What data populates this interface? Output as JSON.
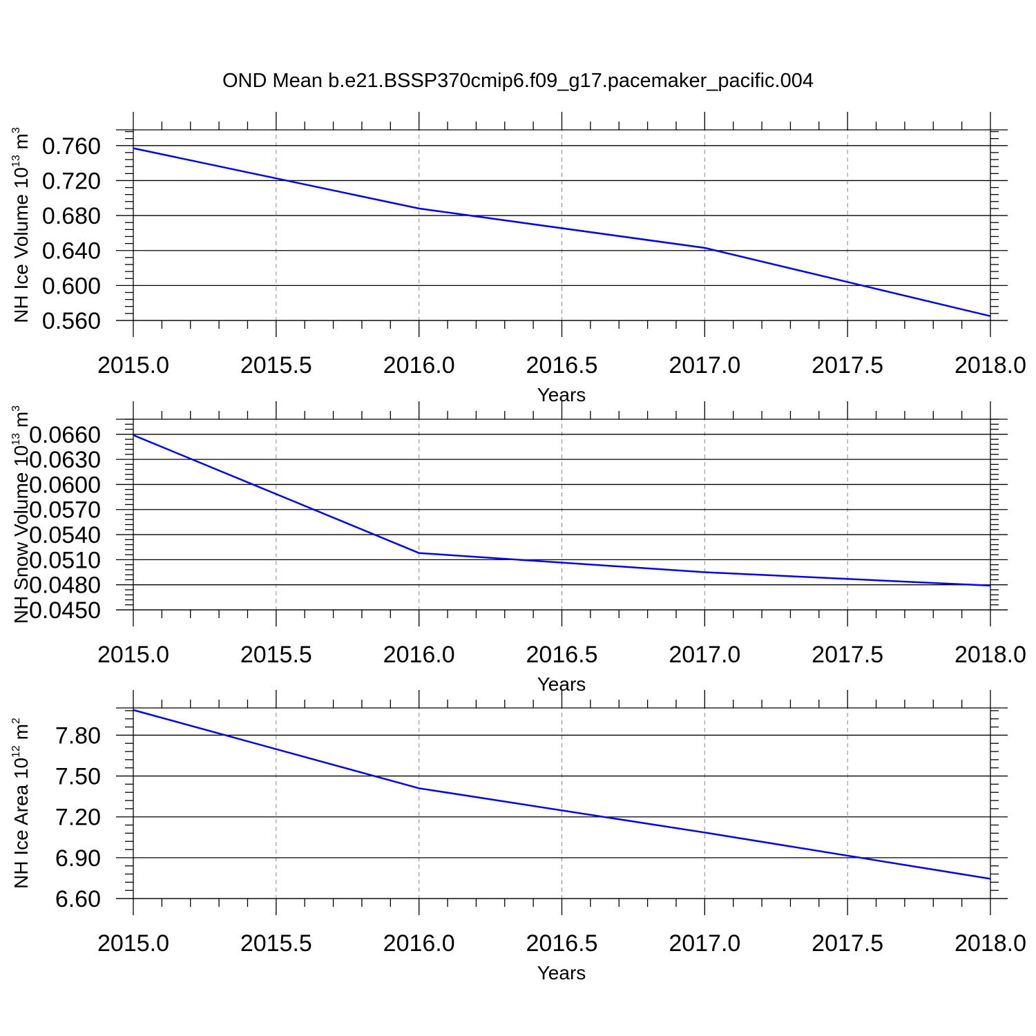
{
  "figure": {
    "title": "OND Mean b.e21.BSSP370cmip6.f09_g17.pacemaker_pacific.004",
    "line_color": "#0000ee",
    "grid_color": "#888888",
    "axis_color": "#000000"
  },
  "chart_data": [
    {
      "type": "line",
      "title": "",
      "xlabel": "Years",
      "ylabel": {
        "base": "NH Ice Volume 10",
        "sup": "13",
        "unit": " m",
        "unit_sup": "3"
      },
      "x": [
        2015,
        2016,
        2017,
        2018
      ],
      "series": [
        {
          "values": [
            0.757,
            0.688,
            0.643,
            0.565
          ]
        }
      ],
      "xlim": [
        2015,
        2018
      ],
      "ylim": [
        0.56,
        0.778
      ],
      "xticks": [
        2015.0,
        2015.5,
        2016.0,
        2016.5,
        2017.0,
        2017.5,
        2018.0
      ],
      "xtick_labels": [
        "2015.0",
        "2015.5",
        "2016.0",
        "2016.5",
        "2017.0",
        "2017.5",
        "2018.0"
      ],
      "yticks": [
        0.56,
        0.6,
        0.64,
        0.68,
        0.72,
        0.76
      ],
      "ytick_labels": [
        "0.560",
        "0.600",
        "0.640",
        "0.680",
        "0.720",
        "0.760"
      ],
      "grid": "vertical dashed at major x ticks"
    },
    {
      "type": "line",
      "title": "",
      "xlabel": "Years",
      "ylabel": {
        "base": "NH Snow Volume 10",
        "sup": "13",
        "unit": " m",
        "unit_sup": "3"
      },
      "x": [
        2015,
        2016,
        2017,
        2018
      ],
      "series": [
        {
          "values": [
            0.0659,
            0.0518,
            0.0495,
            0.0479
          ]
        }
      ],
      "xlim": [
        2015,
        2018
      ],
      "ylim": [
        0.045,
        0.0678
      ],
      "xticks": [
        2015.0,
        2015.5,
        2016.0,
        2016.5,
        2017.0,
        2017.5,
        2018.0
      ],
      "xtick_labels": [
        "2015.0",
        "2015.5",
        "2016.0",
        "2016.5",
        "2017.0",
        "2017.5",
        "2018.0"
      ],
      "yticks": [
        0.045,
        0.048,
        0.051,
        0.054,
        0.057,
        0.06,
        0.063,
        0.066
      ],
      "ytick_labels": [
        "0.0450",
        "0.0480",
        "0.0510",
        "0.0540",
        "0.0570",
        "0.0600",
        "0.0630",
        "0.0660"
      ],
      "grid": "vertical dashed at major x ticks"
    },
    {
      "type": "line",
      "title": "",
      "xlabel": "Years",
      "ylabel": {
        "base": "NH Ice Area 10",
        "sup": "12",
        "unit": " m",
        "unit_sup": "2"
      },
      "x": [
        2015,
        2016,
        2017,
        2018
      ],
      "series": [
        {
          "values": [
            7.985,
            7.41,
            7.085,
            6.745
          ]
        }
      ],
      "xlim": [
        2015,
        2018
      ],
      "ylim": [
        6.6,
        8.0
      ],
      "xticks": [
        2015.0,
        2015.5,
        2016.0,
        2016.5,
        2017.0,
        2017.5,
        2018.0
      ],
      "xtick_labels": [
        "2015.0",
        "2015.5",
        "2016.0",
        "2016.5",
        "2017.0",
        "2017.5",
        "2018.0"
      ],
      "yticks": [
        6.6,
        6.9,
        7.2,
        7.5,
        7.8
      ],
      "ytick_labels": [
        "6.60",
        "6.90",
        "7.20",
        "7.50",
        "7.80"
      ],
      "grid": "vertical dashed at major x ticks"
    }
  ]
}
